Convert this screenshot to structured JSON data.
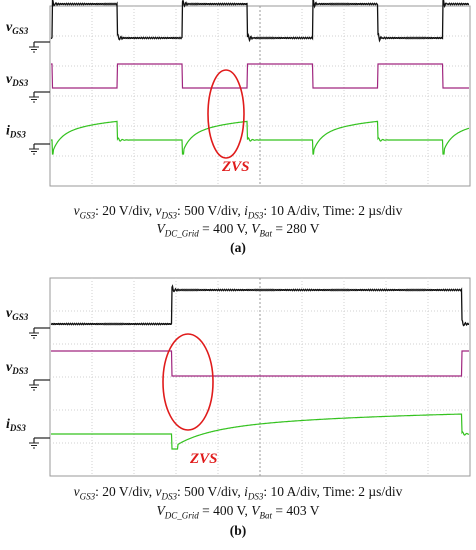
{
  "chart_data": [
    {
      "panel": "(a)",
      "type": "line",
      "channels": [
        {
          "label_main": "v",
          "label_sub": "GS3",
          "color": "#111111"
        },
        {
          "label_main": "v",
          "label_sub": "DS3",
          "color": "#a0267f"
        },
        {
          "label_main": "i",
          "label_sub": "DS3",
          "color": "#34c21f"
        }
      ],
      "annotation": "ZVS",
      "settings": {
        "ch1": {
          "var": "v",
          "sub": "GS3",
          "text": ": 20 V/div, "
        },
        "ch2": {
          "var": "v",
          "sub": "DS3",
          "text": ": 500 V/div, "
        },
        "ch3": {
          "var": "i",
          "sub": "DS3",
          "text": ": 10 A/div, Time: 2 µs/div"
        },
        "v_grid_main": "V",
        "v_grid_sub": "DC_Grid",
        "v_grid_val": " = 400 V, ",
        "v_bat_main": "V",
        "v_bat_sub": "Bat",
        "v_bat_val": " = 280 V"
      },
      "waveform": {
        "period_div": 3.1,
        "duty": 0.5,
        "first_rise_div": 0.05
      },
      "grid": {
        "x_divisions": 10,
        "y_divisions": 6
      }
    },
    {
      "panel": "(b)",
      "type": "line",
      "channels": [
        {
          "label_main": "v",
          "label_sub": "GS3",
          "color": "#111111"
        },
        {
          "label_main": "v",
          "label_sub": "DS3",
          "color": "#a0267f"
        },
        {
          "label_main": "i",
          "label_sub": "DS3",
          "color": "#34c21f"
        }
      ],
      "annotation": "ZVS",
      "settings": {
        "ch1": {
          "var": "v",
          "sub": "GS3",
          "text": ": 20 V/div, "
        },
        "ch2": {
          "var": "v",
          "sub": "DS3",
          "text": ": 500 V/div, "
        },
        "ch3": {
          "var": "i",
          "sub": "DS3",
          "text": ": 10 A/div, Time: 2 µs/div"
        },
        "v_grid_main": "V",
        "v_grid_sub": "DC_Grid",
        "v_grid_val": " = 400 V, ",
        "v_bat_main": "V",
        "v_bat_sub": "Bat",
        "v_bat_val": " = 403 V"
      },
      "waveform": {
        "period_div": 13.8,
        "duty": 0.5,
        "first_rise_div": 2.9
      },
      "grid": {
        "x_divisions": 10,
        "y_divisions": 6
      }
    }
  ]
}
